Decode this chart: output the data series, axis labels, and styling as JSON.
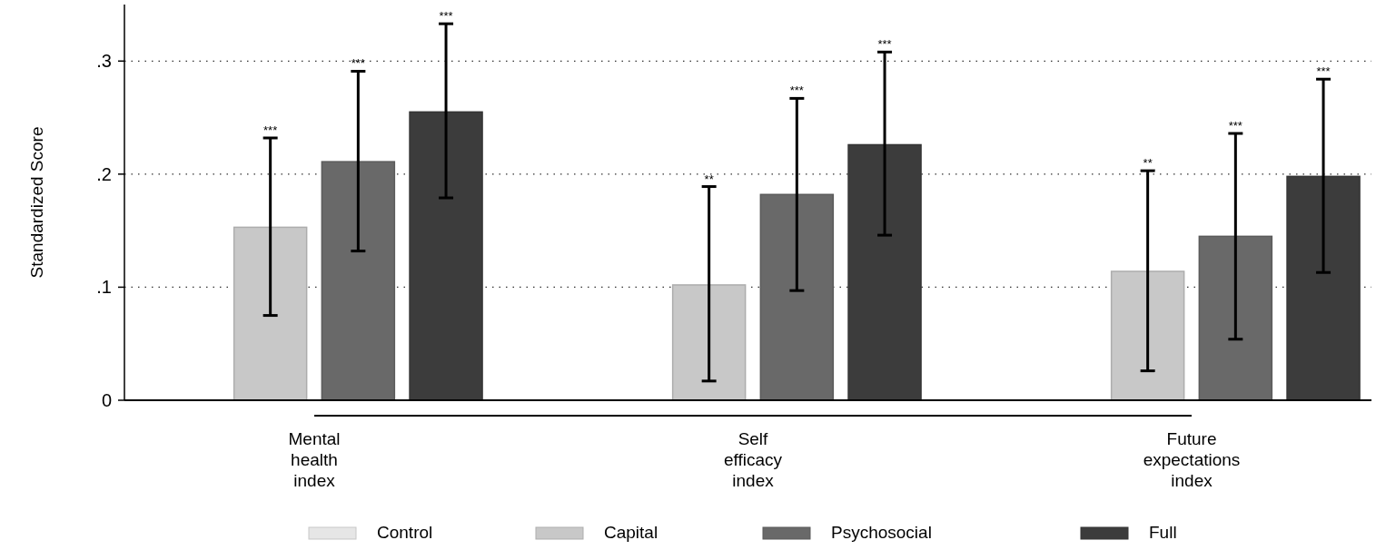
{
  "chart_data": {
    "type": "bar",
    "ylabel": "Standardized Score",
    "categories": [
      "Mental health index",
      "Self efficacy index",
      "Future expectations index"
    ],
    "series": [
      {
        "name": "Control",
        "color": "#e6e6e6",
        "values": [
          0,
          0,
          0
        ]
      },
      {
        "name": "Capital",
        "color": "#c8c8c8",
        "values": [
          0.153,
          0.102,
          0.114
        ],
        "errors": [
          [
            0.075,
            0.232
          ],
          [
            0.017,
            0.189
          ],
          [
            0.026,
            0.203
          ]
        ]
      },
      {
        "name": "Psychosocial",
        "color": "#696969",
        "values": [
          0.211,
          0.182,
          0.145
        ],
        "errors": [
          [
            0.132,
            0.291
          ],
          [
            0.097,
            0.267
          ],
          [
            0.054,
            0.236
          ]
        ]
      },
      {
        "name": "Full",
        "color": "#3c3c3c",
        "values": [
          0.255,
          0.226,
          0.198
        ],
        "errors": [
          [
            0.179,
            0.333
          ],
          [
            0.146,
            0.308
          ],
          [
            0.113,
            0.284
          ]
        ]
      }
    ],
    "annotations": [
      "***",
      "***",
      "***",
      "**",
      "***",
      "***",
      "**",
      "***",
      "***"
    ],
    "ylim": [
      0,
      0.35
    ],
    "yticks": [
      0,
      {
        "value": 0.1,
        "label": ".1"
      },
      {
        "value": 0.2,
        "label": ".2"
      },
      {
        "value": 0.3,
        "label": ".3"
      }
    ],
    "grid": "y",
    "legend": "bottom"
  }
}
